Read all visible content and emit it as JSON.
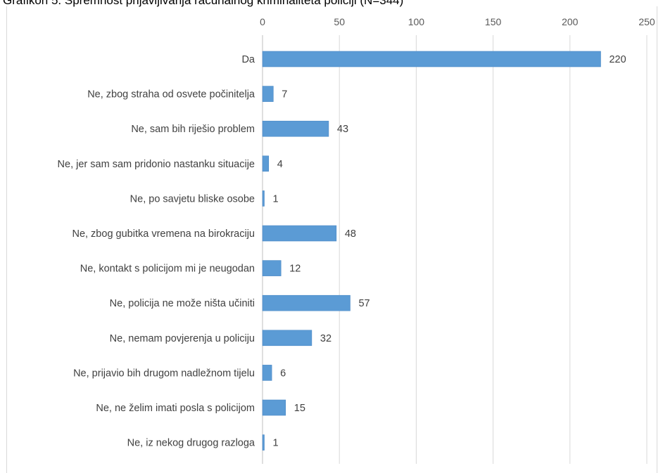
{
  "caption": "Grafikon 5. Spremnost prijavljivanja računalnog kriminaliteta policiji (N=344)",
  "chart_data": {
    "type": "bar",
    "orientation": "horizontal",
    "title": "",
    "xlabel": "",
    "ylabel": "",
    "xlim": [
      0,
      250
    ],
    "x_ticks": [
      "0",
      "50",
      "100",
      "150",
      "200",
      "250"
    ],
    "grid": true,
    "legend": "none",
    "bar_color": "#5b9bd5",
    "categories": [
      "Da",
      "Ne, zbog straha od osvete počinitelja",
      "Ne, sam bih riješio problem",
      "Ne, jer sam sam pridonio nastanku situacije",
      "Ne, po savjetu bliske osobe",
      "Ne, zbog gubitka vremena na birokraciju",
      "Ne, kontakt s policijom mi je neugodan",
      "Ne, policija ne može ništa učiniti",
      "Ne, nemam povjerenja u policiju",
      "Ne, prijavio bih drugom nadležnom tijelu",
      "Ne, ne želim imati posla s policijom",
      "Ne, iz nekog drugog razloga"
    ],
    "values": [
      220,
      7,
      43,
      4,
      1,
      48,
      12,
      57,
      32,
      6,
      15,
      1
    ]
  }
}
